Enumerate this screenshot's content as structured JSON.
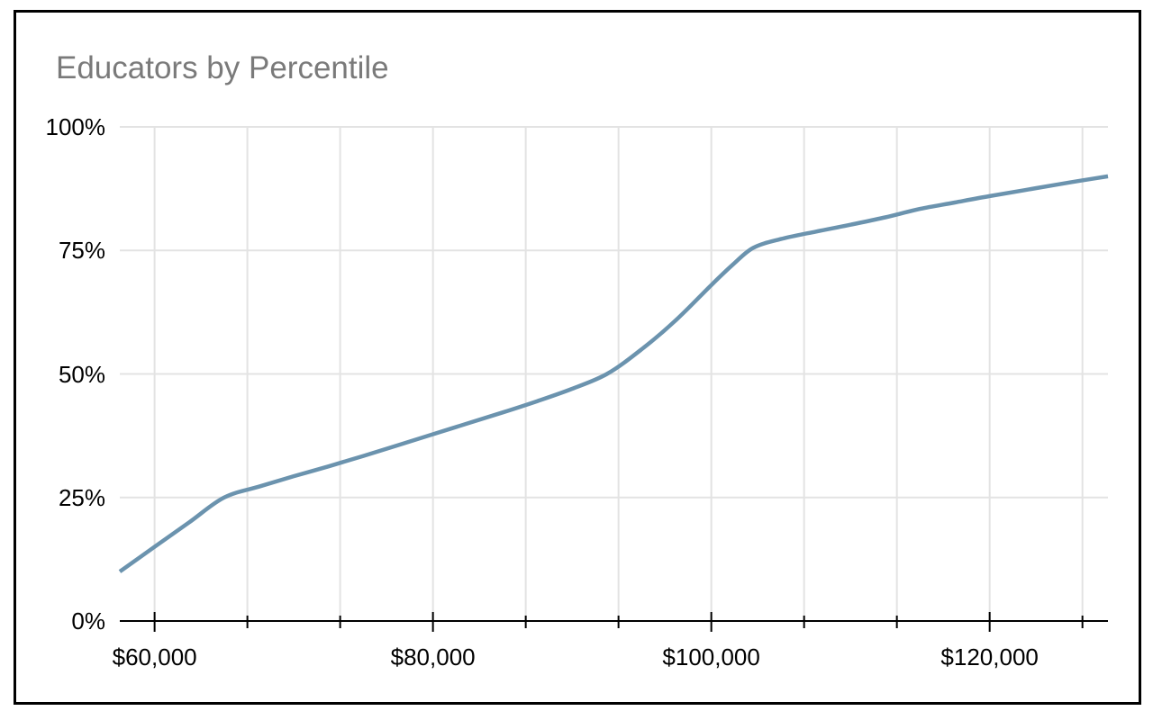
{
  "chart_data": {
    "type": "line",
    "title": "Educators by Percentile",
    "xlabel": "",
    "ylabel": "",
    "xlim": [
      57500,
      128500
    ],
    "ylim": [
      0,
      100
    ],
    "grid": true,
    "legend_position": "none",
    "x_ticks_major": [
      {
        "value": 60000,
        "label": "$60,000"
      },
      {
        "value": 80000,
        "label": "$80,000"
      },
      {
        "value": 100000,
        "label": "$100,000"
      },
      {
        "value": 120000,
        "label": "$120,000"
      }
    ],
    "x_ticks_minor": [
      66667,
      73333,
      86667,
      93333,
      106667,
      113333,
      126667
    ],
    "y_ticks": [
      {
        "value": 0,
        "label": "0%"
      },
      {
        "value": 25,
        "label": "25%"
      },
      {
        "value": 50,
        "label": "50%"
      },
      {
        "value": 75,
        "label": "75%"
      },
      {
        "value": 100,
        "label": "100%"
      }
    ],
    "series": [
      {
        "name": "Educators",
        "points": [
          [
            57500,
            10
          ],
          [
            60000,
            15
          ],
          [
            62500,
            20
          ],
          [
            65000,
            25
          ],
          [
            67500,
            27.2
          ],
          [
            70000,
            29.3
          ],
          [
            72500,
            31.3
          ],
          [
            75000,
            33.4
          ],
          [
            77500,
            35.6
          ],
          [
            80000,
            37.8
          ],
          [
            82500,
            40.0
          ],
          [
            85000,
            42.2
          ],
          [
            87500,
            44.5
          ],
          [
            90000,
            47.0
          ],
          [
            92500,
            50.0
          ],
          [
            95000,
            55.0
          ],
          [
            97500,
            61.0
          ],
          [
            100000,
            68.0
          ],
          [
            101500,
            72.0
          ],
          [
            103000,
            75.5
          ],
          [
            105000,
            77.3
          ],
          [
            107500,
            78.8
          ],
          [
            110000,
            80.2
          ],
          [
            112500,
            81.7
          ],
          [
            115000,
            83.4
          ],
          [
            117500,
            84.7
          ],
          [
            120000,
            86.0
          ],
          [
            122500,
            87.2
          ],
          [
            125000,
            88.4
          ],
          [
            126500,
            89.1
          ],
          [
            128500,
            90.0
          ]
        ]
      }
    ],
    "colors": {
      "line": "#6b93ae",
      "gridline": "#e3e3e3",
      "axis": "#000000",
      "tick_text": "#000000",
      "title_text": "#7a7a7a",
      "background": "#ffffff",
      "frame": "#000000"
    }
  }
}
